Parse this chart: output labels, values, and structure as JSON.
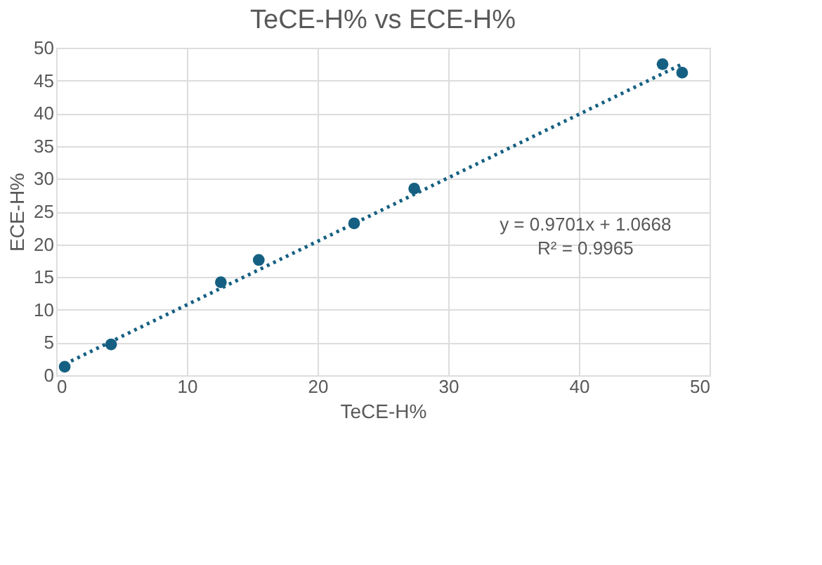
{
  "chart_data": {
    "type": "scatter",
    "title": "TeCE-H% vs ECE-H%",
    "xlabel": "TeCE-H%",
    "ylabel": "ECE-H%",
    "series": [
      {
        "color": "#156082",
        "x": [
          0.65,
          4.2,
          12.6,
          15.5,
          22.8,
          27.4,
          46.4,
          47.9
        ],
        "values": [
          1.3,
          4.7,
          14.2,
          17.6,
          23.2,
          28.5,
          47.5,
          46.2
        ]
      },
      {
        "type": "line",
        "color": "#156082",
        "line_style": "dotted",
        "marker": "none",
        "x": [
          0.65,
          47.9
        ],
        "values": [
          1.7,
          47.5
        ]
      }
    ],
    "xlim": [
      0,
      50
    ],
    "xticks": [
      0,
      10,
      20,
      30,
      40,
      50
    ],
    "ylim": [
      0,
      50
    ],
    "yticks": [
      0,
      5,
      10,
      15,
      20,
      25,
      30,
      35,
      40,
      45,
      50
    ],
    "grid": true,
    "marker": "circle",
    "annotations": [
      "y = 0.9701x + 1.0668",
      "R² = 0.9965"
    ]
  }
}
